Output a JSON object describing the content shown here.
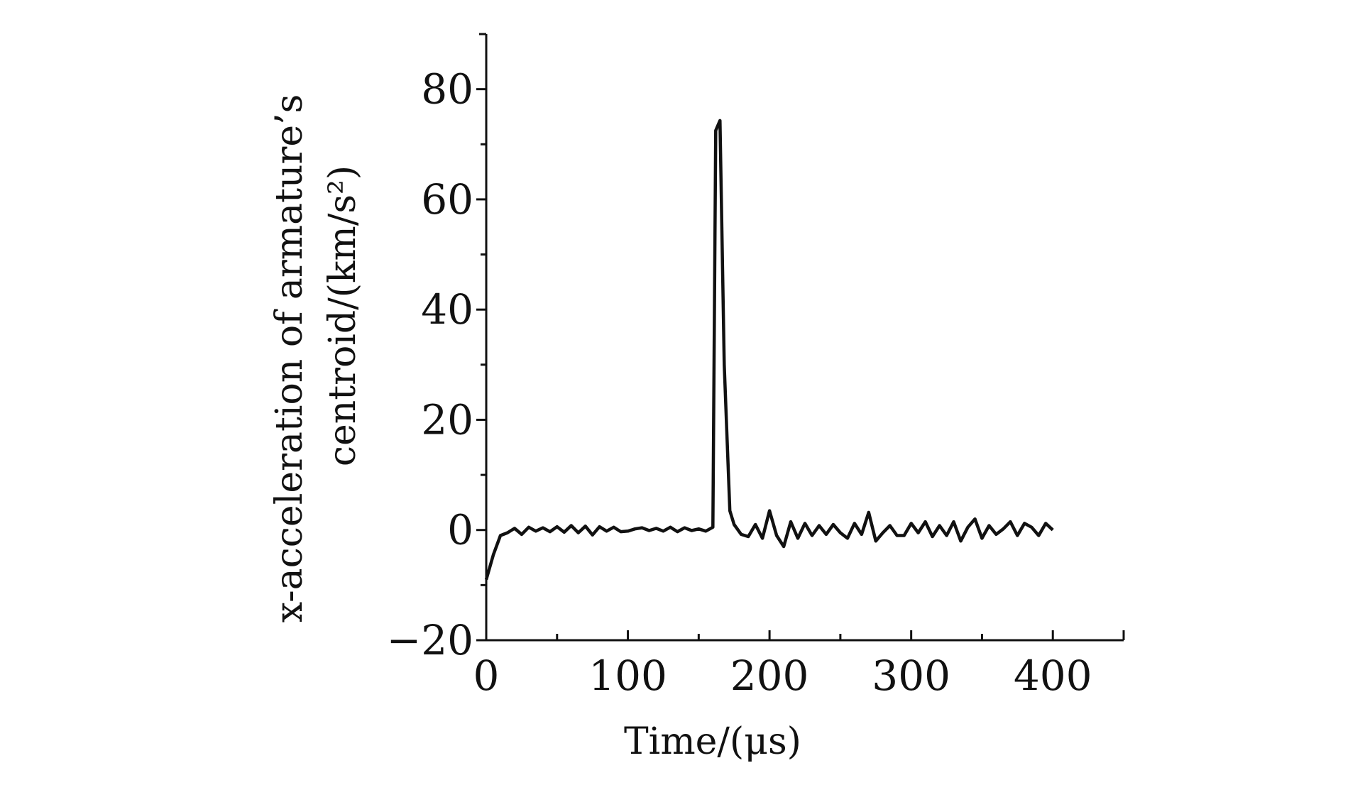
{
  "chart_data": {
    "type": "line",
    "title": "",
    "xlabel": "Time/(μs)",
    "ylabel_line1": "x-acceleration of armature’s",
    "ylabel_line2": "centroid/(km/s²)",
    "xlim": [
      0,
      450
    ],
    "ylim": [
      -20,
      90
    ],
    "x_ticks": [
      0,
      100,
      200,
      300,
      400
    ],
    "x_tick_labels": [
      "0",
      "100",
      "200",
      "300",
      "400"
    ],
    "y_ticks": [
      -20,
      0,
      20,
      40,
      60,
      80
    ],
    "y_tick_labels": [
      "−20",
      "0",
      "20",
      "40",
      "60",
      "80"
    ],
    "grid": false,
    "series": [
      {
        "name": "",
        "x": [
          0,
          5,
          10,
          15,
          20,
          25,
          30,
          35,
          40,
          45,
          50,
          55,
          60,
          65,
          70,
          75,
          80,
          85,
          90,
          95,
          100,
          105,
          110,
          115,
          120,
          125,
          130,
          135,
          140,
          145,
          150,
          155,
          160,
          162,
          165,
          168,
          172,
          175,
          180,
          185,
          190,
          195,
          200,
          205,
          210,
          215,
          220,
          225,
          230,
          235,
          240,
          245,
          250,
          255,
          260,
          265,
          270,
          275,
          280,
          285,
          290,
          295,
          300,
          305,
          310,
          315,
          320,
          325,
          330,
          335,
          340,
          345,
          350,
          355,
          360,
          365,
          370,
          375,
          380,
          385,
          390,
          395,
          400
        ],
        "y": [
          -9,
          -4.5,
          -1,
          -0.5,
          0.3,
          -0.8,
          0.5,
          -0.2,
          0.4,
          -0.3,
          0.6,
          -0.4,
          0.8,
          -0.5,
          0.7,
          -0.9,
          0.6,
          -0.2,
          0.5,
          -0.3,
          -0.2,
          0.2,
          0.4,
          -0.1,
          0.3,
          -0.2,
          0.5,
          -0.3,
          0.4,
          -0.1,
          0.2,
          -0.2,
          0.5,
          72.5,
          74.3,
          30,
          3.5,
          1,
          -0.8,
          -1.2,
          1,
          -1.5,
          3.5,
          -1,
          -3,
          1.5,
          -1.5,
          1.2,
          -1,
          0.8,
          -0.8,
          1,
          -0.5,
          -1.5,
          1.2,
          -0.8,
          3.2,
          -2,
          -0.5,
          0.8,
          -1,
          -1,
          1.2,
          -0.5,
          1.5,
          -1.2,
          0.8,
          -1,
          1.5,
          -2,
          0.5,
          2,
          -1.5,
          0.8,
          -0.8,
          0.2,
          1.5,
          -1,
          1.2,
          0.5,
          -1,
          1.2,
          0
        ]
      }
    ]
  }
}
